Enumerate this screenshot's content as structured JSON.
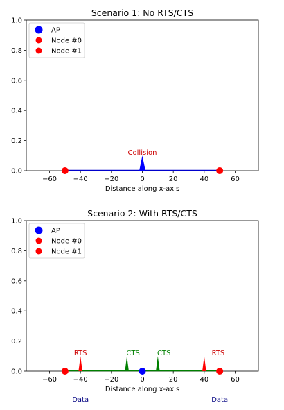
{
  "chart_data": [
    {
      "type": "scatter",
      "title": "Scenario 1: No RTS/CTS",
      "xlabel": "Distance along x-axis",
      "ylabel": "",
      "xlim": [
        -75,
        75
      ],
      "ylim": [
        0,
        1
      ],
      "xticks": [
        -60,
        -40,
        -20,
        0,
        20,
        40,
        60
      ],
      "yticks": [
        0.0,
        0.2,
        0.4,
        0.6,
        0.8,
        1.0
      ],
      "xtick_labels": [
        "−60",
        "−40",
        "−20",
        "0",
        "20",
        "40",
        "60"
      ],
      "ytick_labels": [
        "0.0",
        "0.2",
        "0.4",
        "0.6",
        "0.8",
        "1.0"
      ],
      "grid": false,
      "legend_position": "upper-left",
      "legend": [
        {
          "label": "AP",
          "color": "#0000ff"
        },
        {
          "label": "Node #0",
          "color": "#ff0000"
        },
        {
          "label": "Node #1",
          "color": "#ff0000"
        }
      ],
      "points": [
        {
          "name": "Node #0",
          "x": -50,
          "y": 0,
          "color": "#ff0000"
        },
        {
          "name": "Node #1",
          "x": 50,
          "y": 0,
          "color": "#ff0000"
        }
      ],
      "segments": [
        {
          "x1": -50,
          "y1": 0,
          "x2": 50,
          "y2": 0,
          "color": "#0000cc"
        }
      ],
      "spikes": [
        {
          "x": 0,
          "height": 0.1,
          "width": 4,
          "color": "#0000ff"
        }
      ],
      "annotations": [
        {
          "text": "Collision",
          "x": 0,
          "y": 0.105,
          "color": "#cc0000"
        }
      ],
      "below_annotations": []
    },
    {
      "type": "scatter",
      "title": "Scenario 2: With RTS/CTS",
      "xlabel": "Distance along x-axis",
      "ylabel": "",
      "xlim": [
        -75,
        75
      ],
      "ylim": [
        0,
        1
      ],
      "xticks": [
        -60,
        -40,
        -20,
        0,
        20,
        40,
        60
      ],
      "yticks": [
        0.0,
        0.2,
        0.4,
        0.6,
        0.8,
        1.0
      ],
      "xtick_labels": [
        "−60",
        "−40",
        "−20",
        "0",
        "20",
        "40",
        "60"
      ],
      "ytick_labels": [
        "0.0",
        "0.2",
        "0.4",
        "0.6",
        "0.8",
        "1.0"
      ],
      "grid": false,
      "legend_position": "upper-left",
      "legend": [
        {
          "label": "AP",
          "color": "#0000ff"
        },
        {
          "label": "Node #0",
          "color": "#ff0000"
        },
        {
          "label": "Node #1",
          "color": "#ff0000"
        }
      ],
      "points": [
        {
          "name": "Node #0",
          "x": -50,
          "y": 0,
          "color": "#ff0000"
        },
        {
          "name": "AP",
          "x": 0,
          "y": 0,
          "color": "#0000ff"
        },
        {
          "name": "Node #1",
          "x": 50,
          "y": 0,
          "color": "#ff0000"
        }
      ],
      "segments": [
        {
          "x1": -50,
          "y1": 0,
          "x2": 50,
          "y2": 0,
          "color": "#008000"
        }
      ],
      "spikes": [
        {
          "x": -40,
          "height": 0.1,
          "width": 2.5,
          "color": "#ff0000"
        },
        {
          "x": -10,
          "height": 0.1,
          "width": 2.5,
          "color": "#008000"
        },
        {
          "x": 10,
          "height": 0.1,
          "width": 2.5,
          "color": "#008000"
        },
        {
          "x": 40,
          "height": 0.1,
          "width": 2.5,
          "color": "#ff0000"
        }
      ],
      "annotations": [
        {
          "text": "RTS",
          "x": -40,
          "y": 0.105,
          "color": "#cc0000"
        },
        {
          "text": "CTS",
          "x": -6,
          "y": 0.105,
          "color": "#008000"
        },
        {
          "text": "CTS",
          "x": 14,
          "y": 0.105,
          "color": "#008000"
        },
        {
          "text": "RTS",
          "x": 49,
          "y": 0.105,
          "color": "#cc0000"
        }
      ],
      "below_annotations": [
        {
          "text": "Data",
          "x": -40,
          "color": "#000080"
        },
        {
          "text": "Data",
          "x": 50,
          "color": "#000080"
        }
      ]
    }
  ]
}
